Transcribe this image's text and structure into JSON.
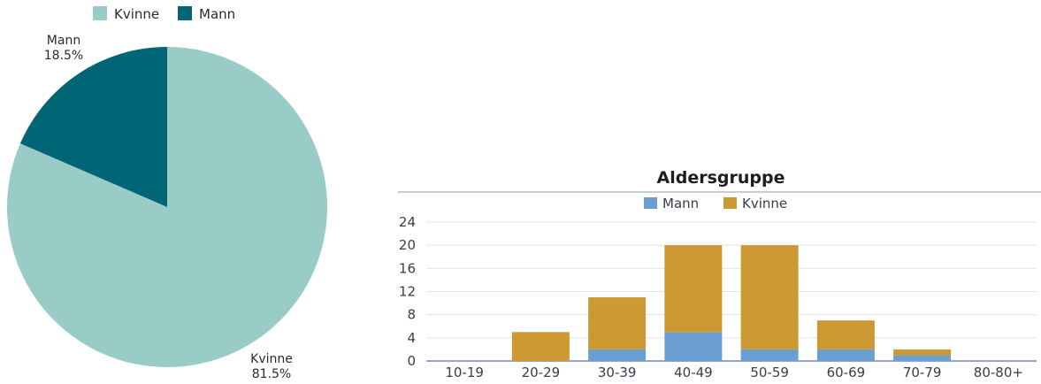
{
  "chart_data": [
    {
      "type": "pie",
      "legend": [
        "Kvinne",
        "Mann"
      ],
      "legend_position": "top",
      "slices": [
        {
          "name": "Kvinne",
          "value": 81.5,
          "label": "81.5%",
          "color": "#99cbc7"
        },
        {
          "name": "Mann",
          "value": 18.5,
          "label": "18.5%",
          "color": "#006675"
        }
      ]
    },
    {
      "type": "bar",
      "stacked": true,
      "title": "Aldersgruppe",
      "categories": [
        "10-19",
        "20-29",
        "30-39",
        "40-49",
        "50-59",
        "60-69",
        "70-79",
        "80-80+"
      ],
      "series": [
        {
          "name": "Mann",
          "color": "#6b9fd2",
          "values": [
            0,
            0,
            2,
            5,
            2,
            2,
            1,
            0
          ]
        },
        {
          "name": "Kvinne",
          "color": "#cc9933",
          "values": [
            0,
            5,
            9,
            15,
            18,
            5,
            1,
            0
          ]
        }
      ],
      "legend_position": "top",
      "yticks": [
        "0",
        "4",
        "8",
        "12",
        "16",
        "20",
        "24"
      ],
      "ylim": [
        0,
        24
      ],
      "grid": true
    }
  ]
}
